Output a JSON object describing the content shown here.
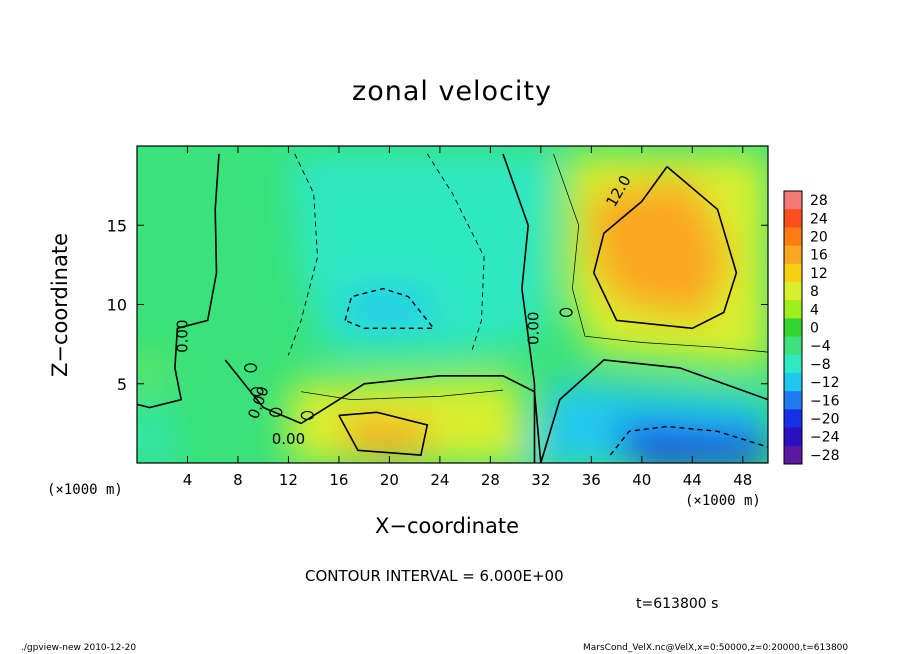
{
  "title": "zonal velocity",
  "xlabel": "X−coordinate",
  "ylabel": "Z−coordinate",
  "x_units_left": "(×1000 m)",
  "x_units_right": "(×1000 m)",
  "contour_interval": "CONTOUR INTERVAL = 6.000E+00",
  "time_stamp": "t=613800 s",
  "footer_left": "./gpview-new   2010-12-20",
  "footer_right": "MarsCond_VelX.nc@VelX,x=0:50000,z=0:20000,t=613800",
  "chart_data": {
    "type": "heatmap",
    "title": "zonal velocity",
    "xlabel": "X−coordinate",
    "ylabel": "Z−coordinate",
    "x_unit": "(×1000 m)",
    "xlim": [
      0,
      50
    ],
    "ylim": [
      0,
      20
    ],
    "x_ticks": [
      4,
      8,
      12,
      16,
      20,
      24,
      28,
      32,
      36,
      40,
      44,
      48
    ],
    "y_ticks": [
      5,
      10,
      15
    ],
    "contour_interval": 6.0,
    "contour_labels": [
      "0.00",
      "0.00",
      "0.00",
      "0.00",
      "12.0"
    ],
    "colorbar": {
      "levels": [
        28,
        24,
        20,
        16,
        12,
        8,
        4,
        0,
        -4,
        -8,
        -12,
        -16,
        -20,
        -24,
        -28
      ],
      "colors": [
        "#f47a7a",
        "#fb4f1c",
        "#fb7d14",
        "#fba622",
        "#f7cf13",
        "#d8f02d",
        "#9ef01c",
        "#33d631",
        "#3fe07e",
        "#2fe8c4",
        "#20c8f0",
        "#1f7cf0",
        "#1630e8",
        "#2a10c0",
        "#5a1aa0"
      ]
    },
    "features": [
      {
        "label": "positive maximum",
        "x": 42,
        "z": 13,
        "value": 18
      },
      {
        "label": "positive maximum",
        "x": 20,
        "z": 1.5,
        "value": 16
      },
      {
        "label": "negative minimum",
        "x": 19.5,
        "z": 10,
        "value": -12
      },
      {
        "label": "negative minimum",
        "x": 44,
        "z": 1,
        "value": -18
      }
    ]
  }
}
